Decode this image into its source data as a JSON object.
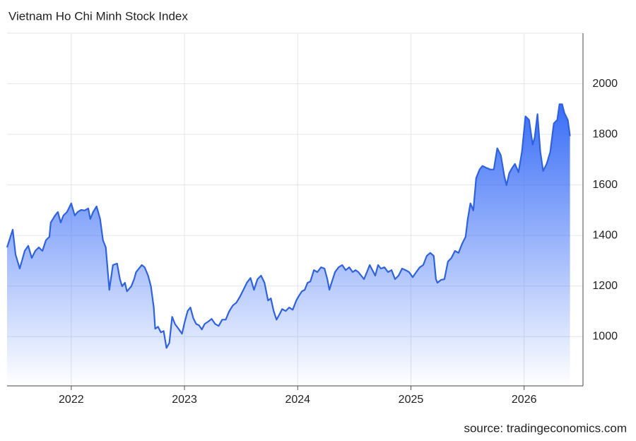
{
  "chart_data": {
    "type": "area",
    "title": "Vietnam Ho Chi Minh Stock Index",
    "source": "source: tradingeconomics.com",
    "color": "#2f62e0",
    "fill_color": "#3a6ef7",
    "grid": true,
    "xlim": [
      2021.433,
      2026.52
    ],
    "xticks": [
      2022,
      2023,
      2024,
      2025,
      2026
    ],
    "ylim": [
      805,
      2200
    ],
    "yticks": [
      1000,
      1200,
      1400,
      1600,
      1800,
      2000
    ],
    "x": [
      2021.433,
      2021.483,
      2021.508,
      2021.545,
      2021.589,
      2021.62,
      2021.651,
      2021.682,
      2021.713,
      2021.745,
      2021.776,
      2021.807,
      2021.819,
      2021.857,
      2021.882,
      2021.907,
      2021.931,
      2021.963,
      2022.0,
      2022.031,
      2022.056,
      2022.087,
      2022.118,
      2022.15,
      2022.168,
      2022.193,
      2022.224,
      2022.255,
      2022.28,
      2022.305,
      2022.336,
      2022.368,
      2022.405,
      2022.43,
      2022.449,
      2022.474,
      2022.492,
      2022.53,
      2022.555,
      2022.573,
      2022.598,
      2022.623,
      2022.648,
      2022.679,
      2022.704,
      2022.729,
      2022.741,
      2022.766,
      2022.791,
      2022.816,
      2022.841,
      2022.866,
      2022.891,
      2022.916,
      2022.947,
      2022.978,
      2023.003,
      2023.028,
      2023.053,
      2023.078,
      2023.103,
      2023.128,
      2023.153,
      2023.178,
      2023.209,
      2023.24,
      2023.271,
      2023.302,
      2023.333,
      2023.364,
      2023.396,
      2023.427,
      2023.458,
      2023.489,
      2023.52,
      2023.551,
      2023.583,
      2023.614,
      2023.645,
      2023.676,
      2023.707,
      2023.738,
      2023.763,
      2023.788,
      2023.813,
      2023.838,
      2023.863,
      2023.894,
      2023.925,
      2023.956,
      2023.988,
      2024.012,
      2024.037,
      2024.062,
      2024.087,
      2024.112,
      2024.143,
      2024.174,
      2024.206,
      2024.237,
      2024.262,
      2024.28,
      2024.299,
      2024.33,
      2024.361,
      2024.393,
      2024.424,
      2024.455,
      2024.486,
      2024.511,
      2024.536,
      2024.561,
      2024.586,
      2024.611,
      2024.636,
      2024.66,
      2024.685,
      2024.71,
      2024.735,
      2024.766,
      2024.798,
      2024.829,
      2024.86,
      2024.891,
      2024.922,
      2024.953,
      2024.984,
      2025.016,
      2025.047,
      2025.078,
      2025.109,
      2025.14,
      2025.171,
      2025.202,
      2025.221,
      2025.234,
      2025.265,
      2025.296,
      2025.327,
      2025.358,
      2025.389,
      2025.421,
      2025.452,
      2025.483,
      2025.502,
      2025.526,
      2025.551,
      2025.576,
      2025.607,
      2025.632,
      2025.67,
      2025.701,
      2025.732,
      2025.763,
      2025.794,
      2025.826,
      2025.844,
      2025.869,
      2025.894,
      2025.919,
      2025.95,
      2025.981,
      2026.012,
      2026.044,
      2026.075,
      2026.093,
      2026.118,
      2026.143,
      2026.168,
      2026.199,
      2026.231,
      2026.262,
      2026.293,
      2026.312,
      2026.336,
      2026.355,
      2026.386,
      2026.405
    ],
    "values": [
      1353,
      1423,
      1325,
      1269,
      1339,
      1359,
      1311,
      1339,
      1353,
      1339,
      1381,
      1395,
      1451,
      1479,
      1493,
      1451,
      1479,
      1493,
      1527,
      1479,
      1493,
      1501,
      1499,
      1507,
      1465,
      1493,
      1515,
      1465,
      1381,
      1353,
      1185,
      1283,
      1289,
      1227,
      1199,
      1213,
      1179,
      1199,
      1227,
      1255,
      1269,
      1283,
      1274,
      1241,
      1199,
      1115,
      1031,
      1039,
      1017,
      1022,
      955,
      975,
      1078,
      1050,
      1031,
      1011,
      1059,
      1101,
      1115,
      1073,
      1050,
      1045,
      1028,
      1050,
      1059,
      1070,
      1050,
      1042,
      1067,
      1067,
      1101,
      1123,
      1134,
      1157,
      1185,
      1213,
      1232,
      1185,
      1227,
      1241,
      1213,
      1143,
      1151,
      1101,
      1067,
      1087,
      1109,
      1101,
      1115,
      1106,
      1143,
      1162,
      1179,
      1185,
      1213,
      1218,
      1263,
      1255,
      1274,
      1269,
      1227,
      1185,
      1213,
      1255,
      1274,
      1283,
      1263,
      1274,
      1255,
      1263,
      1255,
      1241,
      1227,
      1255,
      1283,
      1263,
      1241,
      1283,
      1269,
      1274,
      1255,
      1263,
      1227,
      1241,
      1269,
      1263,
      1255,
      1235,
      1255,
      1274,
      1283,
      1319,
      1331,
      1319,
      1227,
      1213,
      1224,
      1227,
      1297,
      1311,
      1339,
      1331,
      1367,
      1395,
      1465,
      1527,
      1499,
      1627,
      1661,
      1675,
      1667,
      1661,
      1661,
      1745,
      1717,
      1633,
      1599,
      1647,
      1667,
      1683,
      1650,
      1731,
      1871,
      1857,
      1759,
      1787,
      1880,
      1731,
      1655,
      1683,
      1731,
      1843,
      1857,
      1919,
      1919,
      1885,
      1857,
      1793
    ]
  }
}
